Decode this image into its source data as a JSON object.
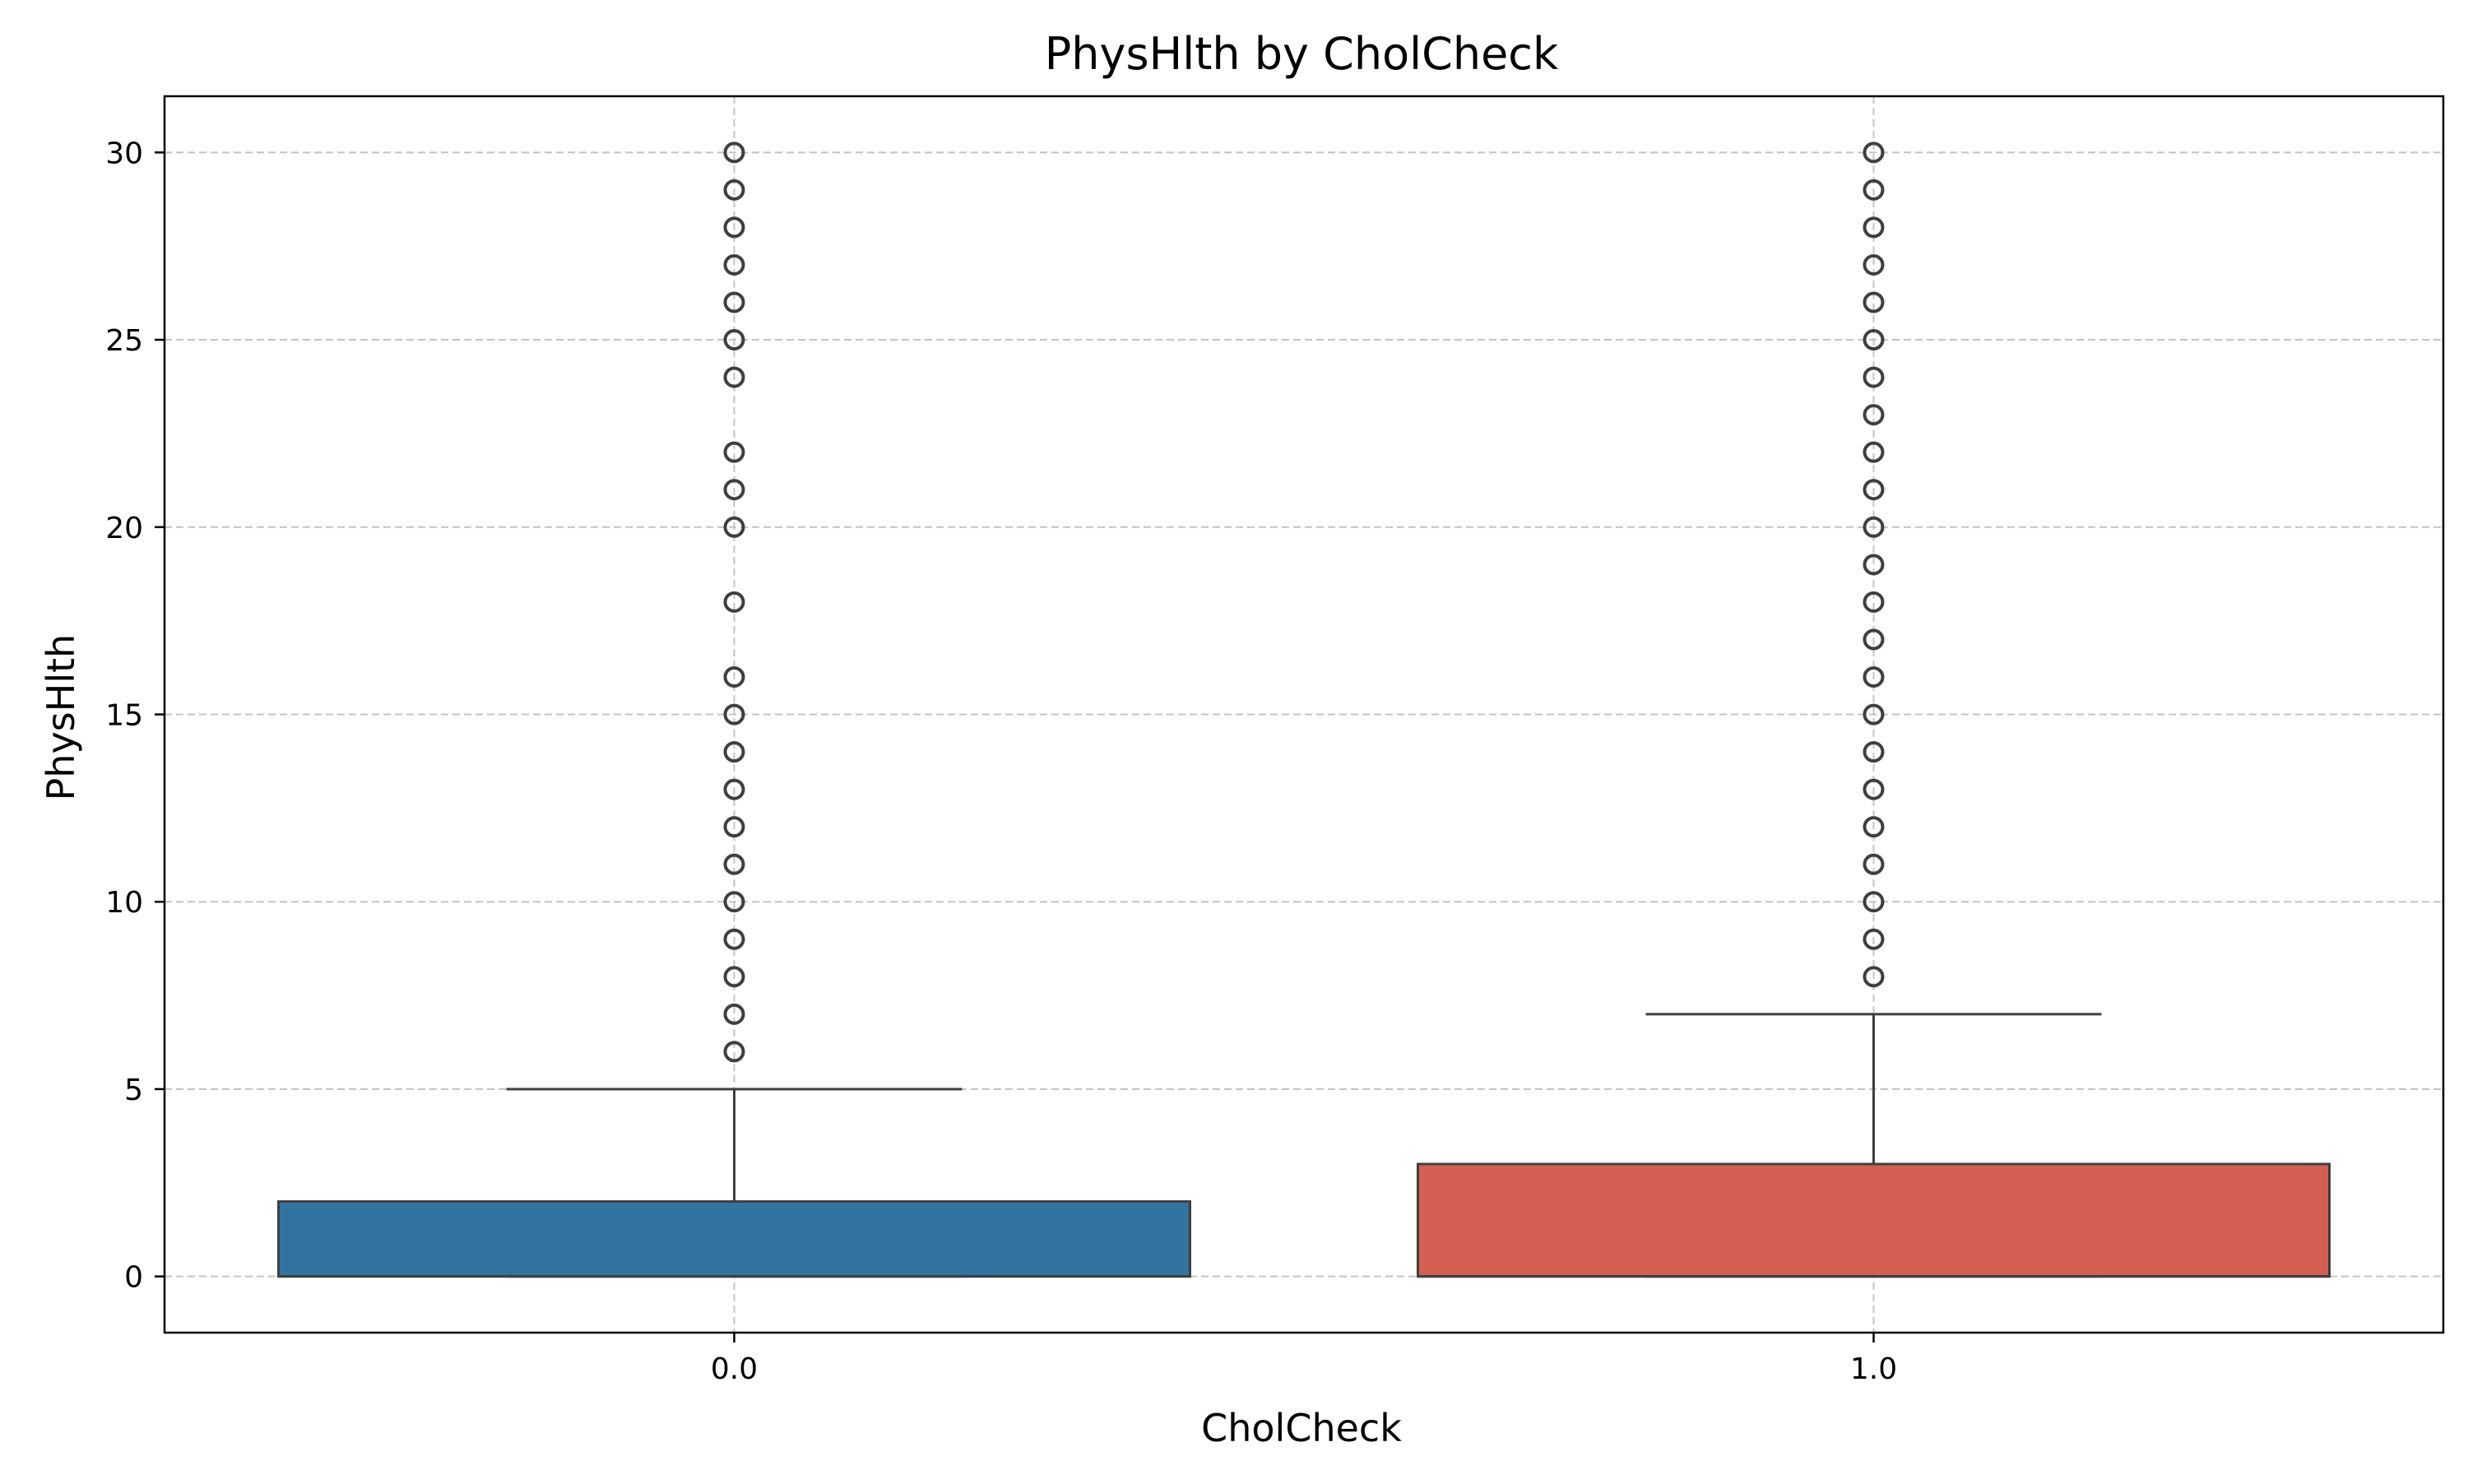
{
  "chart_data": {
    "type": "box",
    "title": "PhysHlth by CholCheck",
    "xlabel": "CholCheck",
    "ylabel": "PhysHlth",
    "categories": [
      "0.0",
      "1.0"
    ],
    "ylim": [
      -1.5,
      31.5
    ],
    "yticks": [
      0,
      5,
      10,
      15,
      20,
      25,
      30
    ],
    "grid": true,
    "legend": "none",
    "boxes": [
      {
        "category": "0.0",
        "color": "#3274a1",
        "whisker_low": 0,
        "q1": 0,
        "median": 0,
        "q3": 2,
        "whisker_high": 5,
        "outliers": [
          6,
          7,
          8,
          9,
          10,
          11,
          12,
          13,
          14,
          15,
          16,
          18,
          20,
          21,
          22,
          24,
          25,
          26,
          27,
          28,
          29,
          30
        ]
      },
      {
        "category": "1.0",
        "color": "#d35f52",
        "whisker_low": 0,
        "q1": 0,
        "median": 0,
        "q3": 3,
        "whisker_high": 7,
        "outliers": [
          8,
          9,
          10,
          11,
          12,
          13,
          14,
          15,
          16,
          17,
          18,
          19,
          20,
          21,
          22,
          23,
          24,
          25,
          26,
          27,
          28,
          29,
          30
        ]
      }
    ]
  }
}
